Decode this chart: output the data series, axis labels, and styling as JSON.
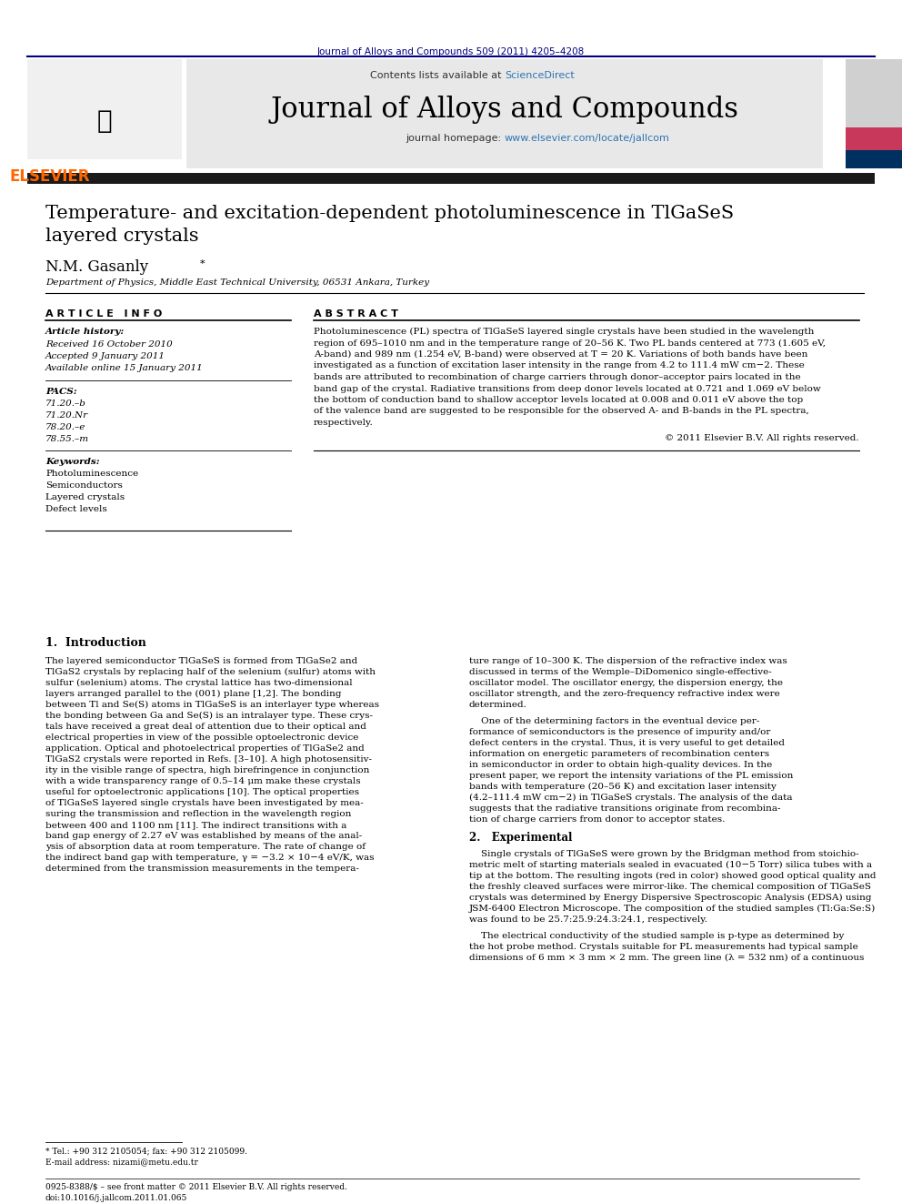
{
  "journal_ref": "Journal of Alloys and Compounds 509 (2011) 4205–4208",
  "journal_ref_color": "#000080",
  "header_text": "Contents lists available at ScienceDirect",
  "sciencedirect_color": "#2e74b5",
  "journal_name": "Journal of Alloys and Compounds",
  "journal_homepage": "journal homepage: www.elsevier.com/locate/jallcom",
  "homepage_url_color": "#2e74b5",
  "header_bg": "#e8e8e8",
  "title": "Temperature- and excitation-dependent photoluminescence in TlGaSeS\nlayered crystals",
  "author": "N.M. Gasanly*",
  "affiliation": "Department of Physics, Middle East Technical University, 06531 Ankara, Turkey",
  "article_info_header": "A R T I C L E   I N F O",
  "abstract_header": "A B S T R A C T",
  "article_history_label": "Article history:",
  "received": "Received 16 October 2010",
  "accepted": "Accepted 9 January 2011",
  "available": "Available online 15 January 2011",
  "pacs_label": "PACS:",
  "pacs_codes": [
    "71.20.–b",
    "71.20.Nr",
    "78.20.–e",
    "78.55.–m"
  ],
  "keywords_label": "Keywords:",
  "keywords": [
    "Photoluminescence",
    "Semiconductors",
    "Layered crystals",
    "Defect levels"
  ],
  "abstract_text": "Photoluminescence (PL) spectra of TlGaSeS layered single crystals have been studied in the wavelength\nregion of 695–1010 nm and in the temperature range of 20–56 K. Two PL bands centered at 773 (1.605 eV,\nA-band) and 989 nm (1.254 eV, B-band) were observed at T = 20 K. Variations of both bands have been\ninvestigated as a function of excitation laser intensity in the range from 4.2 to 111.4 mW cm−2. These\nbands are attributed to recombination of charge carriers through donor–acceptor pairs located in the\nband gap of the crystal. Radiative transitions from deep donor levels located at 0.721 and 1.069 eV below\nthe bottom of conduction band to shallow acceptor levels located at 0.008 and 0.011 eV above the top\nof the valence band are suggested to be responsible for the observed A- and B-bands in the PL spectra,\nrespectively.",
  "copyright": "© 2011 Elsevier B.V. All rights reserved.",
  "intro_heading": "1.  Introduction",
  "intro_col1": "The layered semiconductor TlGaSeS is formed from TlGaSe2 and\nTlGaS2 crystals by replacing half of the selenium (sulfur) atoms with\nsulfur (selenium) atoms. The crystal lattice has two-dimensional\nlayers arranged parallel to the (001) plane [1,2]. The bonding\nbetween Tl and Se(S) atoms in TlGaSeS is an interlayer type whereas\nthe bonding between Ga and Se(S) is an intralayer type. These crys-\ntals have received a great deal of attention due to their optical and\nelectrical properties in view of the possible optoelectronic device\napplication. Optical and photoelectrical properties of TlGaSe2 and\nTlGaS2 crystals were reported in Refs. [3–10]. A high photosensitiv-\nity in the visible range of spectra, high birefringence in conjunction\nwith a wide transparency range of 0.5–14 μm make these crystals\nuseful for optoelectronic applications [10]. The optical properties\nof TlGaSeS layered single crystals have been investigated by mea-\nsuring the transmission and reflection in the wavelength region\nbetween 400 and 1100 nm [11]. The indirect transitions with a\nband gap energy of 2.27 eV was established by means of the anal-\nysis of absorption data at room temperature. The rate of change of\nthe indirect band gap with temperature, γ = −3.2 × 10−4 eV/K, was\ndetermined from the transmission measurements in the tempera-",
  "intro_col2": "ture range of 10–300 K. The dispersion of the refractive index was\ndiscussed in terms of the Wemple–DiDomenico single-effective-\noscillator model. The oscillator energy, the dispersion energy, the\noscillator strength, and the zero-frequency refractive index were\ndetermined.\n\n    One of the determining factors in the eventual device per-\nformance of semiconductors is the presence of impurity and/or\ndefect centers in the crystal. Thus, it is very useful to get detailed\ninformation on energetic parameters of recombination centers\nin semiconductor in order to obtain high-quality devices. In the\npresent paper, we report the intensity variations of the PL emission\nbands with temperature (20–56 K) and excitation laser intensity\n(4.2–111.4 mW cm−2) in TlGaSeS crystals. The analysis of the data\nsuggests that the radiative transitions originate from recombina-\ntion of charge carriers from donor to acceptor states.\n\n2.   Experimental\n\n    Single crystals of TlGaSeS were grown by the Bridgman method from stoichio-\nmetric melt of starting materials sealed in evacuated (10−5 Torr) silica tubes with a\ntip at the bottom. The resulting ingots (red in color) showed good optical quality and\nthe freshly cleaved surfaces were mirror-like. The chemical composition of TlGaSeS\ncrystals was determined by Energy Dispersive Spectroscopic Analysis (EDSA) using\nJSM-6400 Electron Microscope. The composition of the studied samples (Tl:Ga:Se:S)\nwas found to be 25.7:25.9:24.3:24.1, respectively.\n\n    The electrical conductivity of the studied sample is p-type as determined by\nthe hot probe method. Crystals suitable for PL measurements had typical sample\ndimensions of 6 mm × 3 mm × 2 mm. The green line (λ = 532 nm) of a continuous",
  "footnote1": "* Tel.: +90 312 2105054; fax: +90 312 2105099.",
  "footnote2": "E-mail address: nizami@metu.edu.tr",
  "footer1": "0925-8388/$ – see front matter © 2011 Elsevier B.V. All rights reserved.",
  "footer2": "doi:10.1016/j.jallcom.2011.01.065",
  "page_bg": "#ffffff",
  "text_color": "#000000",
  "separator_color": "#000000",
  "dark_bar_color": "#1a1a1a",
  "elsevier_orange": "#ff6600",
  "elsevier_blue": "#003366"
}
